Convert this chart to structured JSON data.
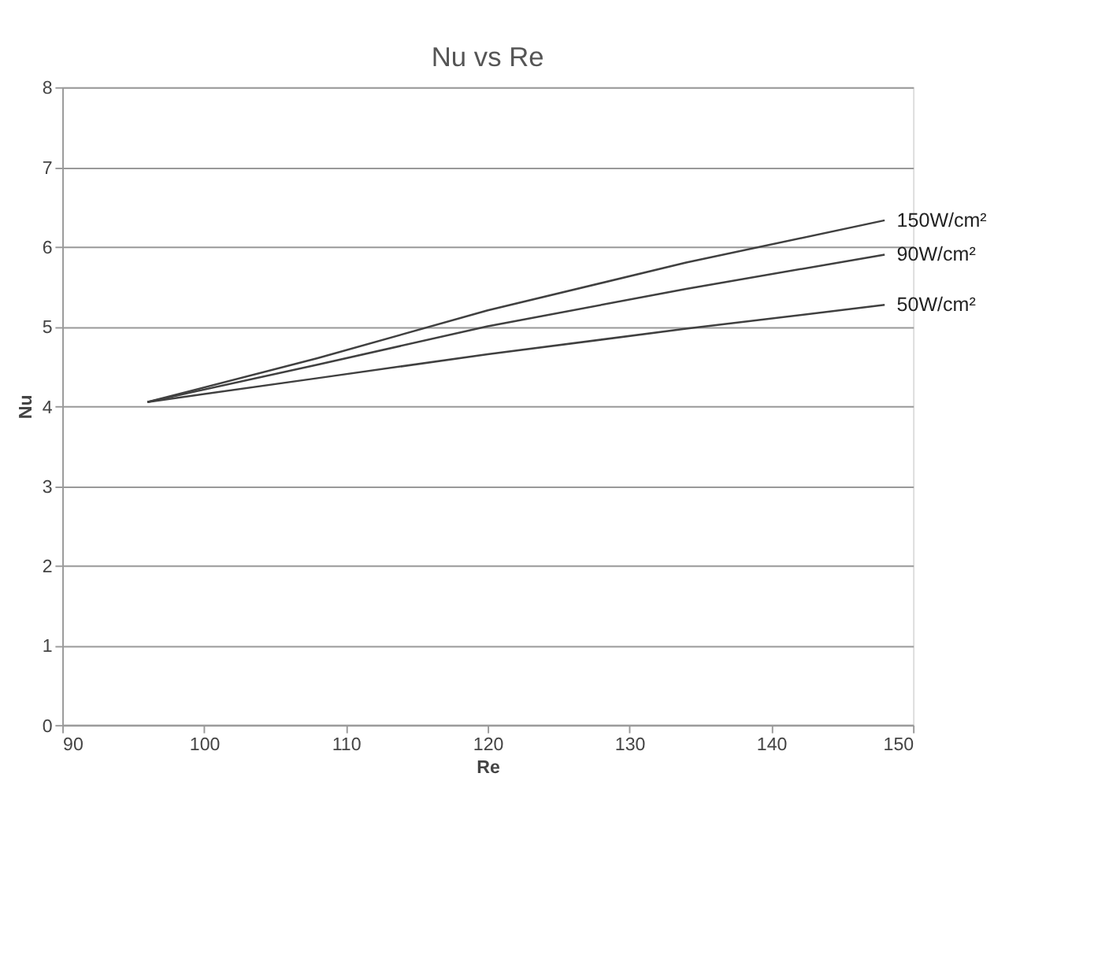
{
  "chart_data": {
    "type": "line",
    "title": "Nu vs Re",
    "xlabel": "Re",
    "ylabel": "Nu",
    "xlim": [
      90,
      150
    ],
    "xticks": [
      90,
      100,
      110,
      120,
      130,
      140,
      150
    ],
    "ylim": [
      0,
      8
    ],
    "yticks": [
      0,
      1,
      2,
      3,
      4,
      5,
      6,
      7,
      8
    ],
    "grid": "y",
    "legend": false,
    "marker": "none",
    "line_style": "solid",
    "series": [
      {
        "name": "150W/cm²",
        "color": "#404040",
        "x": [
          96,
          108,
          120,
          134,
          148
        ],
        "values": [
          4.05,
          4.6,
          5.2,
          5.8,
          6.33
        ]
      },
      {
        "name": "90W/cm²",
        "color": "#404040",
        "x": [
          96,
          108,
          120,
          134,
          148
        ],
        "values": [
          4.05,
          4.52,
          5.0,
          5.47,
          5.9
        ]
      },
      {
        "name": "50W/cm²",
        "color": "#404040",
        "x": [
          96,
          108,
          120,
          134,
          148
        ],
        "values": [
          4.05,
          4.35,
          4.65,
          4.97,
          5.27
        ]
      }
    ]
  }
}
